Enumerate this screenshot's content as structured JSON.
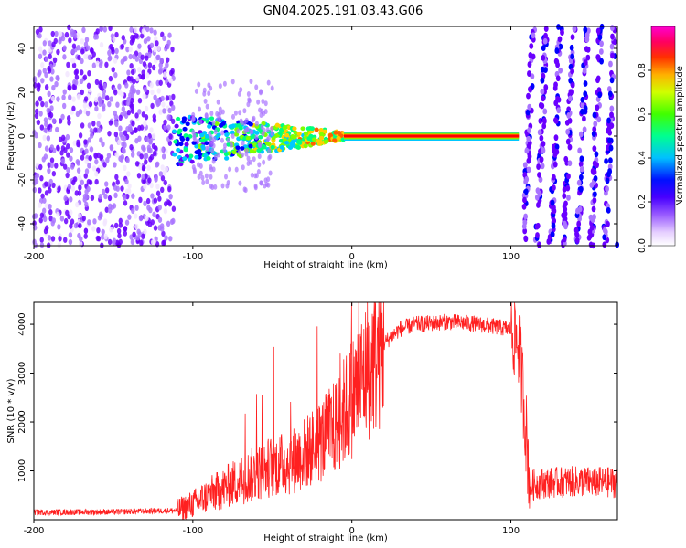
{
  "chart_data": [
    {
      "type": "heatmap",
      "title": "GN04.2025.191.03.43.G06",
      "xlabel": "Height of straight line (km)",
      "ylabel": "Frequency (Hz)",
      "xlim": [
        -200,
        167
      ],
      "ylim": [
        -50,
        50
      ],
      "xticks": [
        -200,
        -100,
        0,
        100
      ],
      "yticks": [
        -40,
        -20,
        0,
        20,
        40
      ],
      "colorbar": {
        "label": "Normalized spectral amplitude",
        "range": [
          0,
          1
        ],
        "ticks": [
          "0.0",
          "0.2",
          "0.4",
          "0.6",
          "0.8"
        ],
        "colormap": [
          "#f2e6ff",
          "#a974ff",
          "#6a00ff",
          "#0000ff",
          "#00c8ff",
          "#00ff80",
          "#80ff00",
          "#ffd000",
          "#ff6000",
          "#ff0000",
          "#ff00c0"
        ]
      },
      "regions": [
        {
          "x": [
            -200,
            -112
          ],
          "pattern": "noise",
          "amplitude": 0.15
        },
        {
          "x": [
            -112,
            -5
          ],
          "pattern": "signal-onset",
          "center_freq": 0,
          "amplitude": 0.6
        },
        {
          "x": [
            -5,
            105
          ],
          "pattern": "steady-line",
          "center_freq": 0,
          "amplitude": 1.0
        },
        {
          "x": [
            108,
            167
          ],
          "pattern": "diagonal-stripes",
          "amplitude": 0.3
        }
      ]
    },
    {
      "type": "line",
      "xlabel": "Height of straight line (km)",
      "ylabel": "SNR (10 * v/v)",
      "xlim": [
        -200,
        167
      ],
      "ylim": [
        0,
        4450
      ],
      "xticks": [
        -200,
        -100,
        0,
        100
      ],
      "yticks": [
        1000,
        2000,
        3000,
        4000
      ],
      "color": "#ff2020",
      "series": [
        {
          "x": [
            -200,
            -150,
            -110,
            -100,
            -90,
            -80,
            -70,
            -60,
            -50,
            -40,
            -30,
            -20,
            -10,
            0,
            10,
            20,
            30,
            40,
            50,
            60,
            70,
            80,
            90,
            100,
            105,
            108,
            112,
            120,
            140,
            167
          ],
          "y": [
            150,
            160,
            190,
            320,
            500,
            650,
            820,
            950,
            1100,
            1150,
            1350,
            1600,
            1900,
            2500,
            3100,
            3600,
            3900,
            4000,
            4020,
            4050,
            4030,
            4000,
            3950,
            3900,
            3600,
            2500,
            700,
            750,
            780,
            760
          ]
        }
      ]
    }
  ]
}
